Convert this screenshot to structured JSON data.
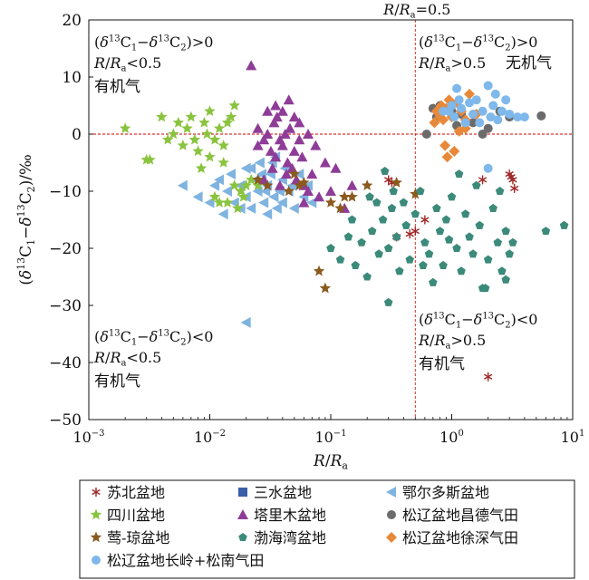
{
  "chart_data": {
    "type": "scatter",
    "title": "",
    "xlabel": "R/Ra",
    "ylabel": "(δ13C1−δ13C2)/‰",
    "xscale": "log",
    "xlim": [
      0.001,
      10
    ],
    "ylim": [
      -50,
      20
    ],
    "x_ticks": [
      0.001,
      0.01,
      0.1,
      1,
      10
    ],
    "x_tick_labels": [
      "10−3",
      "10−2",
      "10−1",
      "100",
      "101"
    ],
    "y_ticks": [
      20,
      10,
      0,
      -10,
      -20,
      -30,
      -40,
      -50
    ],
    "y_tick_labels": [
      "20",
      "10",
      "0",
      "−10",
      "−20",
      "−30",
      "−40",
      "−50"
    ],
    "reference_lines": [
      {
        "orientation": "vertical",
        "x": 0.5,
        "label": "R/Ra=0.5",
        "color": "#c0392b"
      },
      {
        "orientation": "horizontal",
        "y": 0,
        "label": "",
        "color": "#cc0000"
      }
    ],
    "annotations": [
      {
        "line1": "(δ13C1−δ13C2)>0",
        "line2": "R/Ra<0.5",
        "line3": "有机气"
      },
      {
        "line1": "(δ13C1−δ13C2)>0",
        "line2": "R/Ra>0.5",
        "line3": "无机气"
      },
      {
        "line1": "(δ13C1−δ13C2)<0",
        "line2": "R/Ra<0.5",
        "line3": "有机气"
      },
      {
        "line1": "(δ13C1−δ13C2)<0",
        "line2": "R/Ra>0.5",
        "line3": "有机气"
      }
    ],
    "legend_position": "bottom",
    "series": [
      {
        "name": "苏北盆地",
        "marker": "asterisk",
        "color": "#a02828",
        "points": [
          [
            0.3,
            -8
          ],
          [
            0.32,
            -8.5
          ],
          [
            0.35,
            -18
          ],
          [
            0.6,
            -15
          ],
          [
            0.45,
            -17.5
          ],
          [
            1.8,
            -8
          ],
          [
            3.0,
            -7
          ],
          [
            3.2,
            -8
          ],
          [
            3.3,
            -9.5
          ],
          [
            3.1,
            -7.5
          ],
          [
            2.0,
            -42.5
          ],
          [
            0.5,
            -17
          ]
        ]
      },
      {
        "name": "三水盆地",
        "marker": "square",
        "color": "#3b5fa8",
        "points": []
      },
      {
        "name": "鄂尔多斯盆地",
        "marker": "tri-left",
        "color": "#7fb3e0",
        "points": [
          [
            0.006,
            -9
          ],
          [
            0.008,
            -11
          ],
          [
            0.01,
            -12
          ],
          [
            0.012,
            -8
          ],
          [
            0.014,
            -10
          ],
          [
            0.015,
            -7
          ],
          [
            0.016,
            -12
          ],
          [
            0.018,
            -9
          ],
          [
            0.02,
            -6
          ],
          [
            0.02,
            -11
          ],
          [
            0.022,
            -13
          ],
          [
            0.024,
            -8
          ],
          [
            0.025,
            -10
          ],
          [
            0.026,
            -5
          ],
          [
            0.028,
            -12
          ],
          [
            0.03,
            -9
          ],
          [
            0.03,
            -14
          ],
          [
            0.032,
            -7
          ],
          [
            0.034,
            -11
          ],
          [
            0.035,
            -4
          ],
          [
            0.036,
            -13
          ],
          [
            0.038,
            -10
          ],
          [
            0.04,
            -8
          ],
          [
            0.04,
            -12
          ],
          [
            0.042,
            -6
          ],
          [
            0.045,
            -10
          ],
          [
            0.048,
            -9
          ],
          [
            0.05,
            -13
          ],
          [
            0.055,
            -7
          ],
          [
            0.06,
            -11
          ],
          [
            0.065,
            -9
          ],
          [
            0.07,
            -12
          ],
          [
            0.022,
            -6
          ],
          [
            0.018,
            -13
          ],
          [
            0.027,
            -7
          ],
          [
            0.033,
            -5
          ],
          [
            0.02,
            -33
          ],
          [
            0.013,
            -14
          ],
          [
            0.011,
            -9
          ],
          [
            0.029,
            -10
          ]
        ]
      },
      {
        "name": "四川盆地",
        "marker": "star",
        "color": "#8ac43f",
        "points": [
          [
            0.002,
            1
          ],
          [
            0.003,
            -4.5
          ],
          [
            0.0032,
            -4.5
          ],
          [
            0.004,
            3
          ],
          [
            0.0045,
            -1
          ],
          [
            0.005,
            0
          ],
          [
            0.0055,
            2
          ],
          [
            0.006,
            -2
          ],
          [
            0.0065,
            1
          ],
          [
            0.007,
            3
          ],
          [
            0.0075,
            -1
          ],
          [
            0.008,
            -3
          ],
          [
            0.009,
            2
          ],
          [
            0.01,
            4
          ],
          [
            0.011,
            -1
          ],
          [
            0.012,
            1
          ],
          [
            0.013,
            -5
          ],
          [
            0.014,
            2
          ],
          [
            0.015,
            3
          ],
          [
            0.016,
            -9
          ],
          [
            0.018,
            -10
          ],
          [
            0.02,
            -9
          ],
          [
            0.022,
            -8
          ],
          [
            0.025,
            -9
          ],
          [
            0.012,
            -12
          ],
          [
            0.014,
            -12
          ],
          [
            0.011,
            -11
          ],
          [
            0.016,
            5
          ],
          [
            0.013,
            -2
          ],
          [
            0.01,
            -4
          ],
          [
            0.0085,
            -6
          ],
          [
            0.017,
            -13
          ],
          [
            0.0095,
            0
          ],
          [
            0.019,
            -11
          ]
        ]
      },
      {
        "name": "塔里木盆地",
        "marker": "triangle",
        "color": "#8e3c97",
        "points": [
          [
            0.022,
            12
          ],
          [
            0.025,
            -2
          ],
          [
            0.028,
            -1
          ],
          [
            0.03,
            0
          ],
          [
            0.032,
            -3
          ],
          [
            0.034,
            2
          ],
          [
            0.035,
            -4
          ],
          [
            0.036,
            3
          ],
          [
            0.038,
            -1
          ],
          [
            0.04,
            -2
          ],
          [
            0.042,
            0
          ],
          [
            0.044,
            -5
          ],
          [
            0.046,
            1
          ],
          [
            0.048,
            -6
          ],
          [
            0.05,
            -3
          ],
          [
            0.052,
            -8
          ],
          [
            0.055,
            -1
          ],
          [
            0.058,
            -4
          ],
          [
            0.06,
            -9
          ],
          [
            0.065,
            0
          ],
          [
            0.07,
            -7
          ],
          [
            0.075,
            -2
          ],
          [
            0.08,
            -11
          ],
          [
            0.09,
            -5
          ],
          [
            0.1,
            -10
          ],
          [
            0.11,
            -6
          ],
          [
            0.13,
            -13
          ],
          [
            0.15,
            -9
          ],
          [
            0.04,
            4
          ],
          [
            0.045,
            6
          ],
          [
            0.05,
            3
          ],
          [
            0.03,
            4
          ],
          [
            0.035,
            5
          ],
          [
            0.06,
            -12
          ],
          [
            0.055,
            2
          ],
          [
            0.025,
            1
          ],
          [
            0.033,
            -6
          ],
          [
            0.028,
            -8
          ],
          [
            0.065,
            -10
          ],
          [
            0.038,
            -9
          ],
          [
            0.043,
            -7
          ]
        ]
      },
      {
        "name": "松辽盆地昌德气田",
        "marker": "circle",
        "color": "#6b6b6b",
        "points": [
          [
            0.62,
            0
          ],
          [
            0.7,
            4.5
          ],
          [
            0.75,
            3
          ],
          [
            1.0,
            4
          ],
          [
            1.2,
            3.5
          ],
          [
            1.5,
            2
          ],
          [
            2.0,
            1
          ],
          [
            3.0,
            3
          ],
          [
            5.5,
            3.2
          ],
          [
            0.8,
            5
          ],
          [
            1.8,
            0
          ],
          [
            2.5,
            4
          ],
          [
            1.1,
            1.5
          ]
        ]
      },
      {
        "name": "莺-琼盆地",
        "marker": "star",
        "color": "#8a5a1e",
        "points": [
          [
            0.025,
            -8
          ],
          [
            0.03,
            -9
          ],
          [
            0.05,
            -7
          ],
          [
            0.055,
            -9
          ],
          [
            0.06,
            -8.5
          ],
          [
            0.08,
            -24
          ],
          [
            0.09,
            -27
          ],
          [
            0.12,
            -13
          ],
          [
            0.13,
            -11
          ],
          [
            0.15,
            -11
          ],
          [
            0.2,
            -9
          ],
          [
            0.35,
            -8.5
          ],
          [
            0.5,
            -10.5
          ],
          [
            0.1,
            -12
          ],
          [
            0.045,
            -10
          ]
        ]
      },
      {
        "name": "渤海湾盆地",
        "marker": "pentagon",
        "color": "#3b8a7a",
        "points": [
          [
            0.1,
            -20
          ],
          [
            0.12,
            -22
          ],
          [
            0.14,
            -18
          ],
          [
            0.16,
            -23
          ],
          [
            0.18,
            -19
          ],
          [
            0.2,
            -25
          ],
          [
            0.22,
            -17
          ],
          [
            0.25,
            -21
          ],
          [
            0.27,
            -15
          ],
          [
            0.3,
            -20
          ],
          [
            0.32,
            -13
          ],
          [
            0.35,
            -18
          ],
          [
            0.37,
            -24
          ],
          [
            0.4,
            -12
          ],
          [
            0.42,
            -16
          ],
          [
            0.45,
            -22
          ],
          [
            0.5,
            -14
          ],
          [
            0.55,
            -10
          ],
          [
            0.6,
            -19
          ],
          [
            0.65,
            -21
          ],
          [
            0.7,
            -26
          ],
          [
            0.75,
            -13
          ],
          [
            0.8,
            -17
          ],
          [
            0.85,
            -23
          ],
          [
            0.9,
            -15
          ],
          [
            1.0,
            -11
          ],
          [
            1.1,
            -20
          ],
          [
            1.2,
            -24
          ],
          [
            1.3,
            -14
          ],
          [
            1.4,
            -18
          ],
          [
            1.5,
            -21
          ],
          [
            1.6,
            -9
          ],
          [
            1.7,
            -16
          ],
          [
            1.8,
            -27
          ],
          [
            2.0,
            -22
          ],
          [
            2.2,
            -13
          ],
          [
            2.4,
            -19
          ],
          [
            2.6,
            -24
          ],
          [
            2.8,
            -17
          ],
          [
            3.0,
            -21
          ],
          [
            3.2,
            -19
          ],
          [
            6.0,
            -17
          ],
          [
            8.5,
            -16
          ],
          [
            0.3,
            -29.5
          ],
          [
            2.8,
            -25.5
          ],
          [
            1.9,
            -27
          ],
          [
            0.24,
            -12
          ],
          [
            0.28,
            -6.5
          ],
          [
            0.21,
            -11
          ],
          [
            0.15,
            -15
          ],
          [
            1.15,
            -7
          ],
          [
            2.5,
            -10
          ],
          [
            0.95,
            -18.5
          ],
          [
            0.58,
            -23
          ],
          [
            0.33,
            -10
          ]
        ]
      },
      {
        "name": "松辽盆地徐深气田",
        "marker": "diamond",
        "color": "#e8893a",
        "points": [
          [
            0.72,
            2
          ],
          [
            0.75,
            4
          ],
          [
            0.8,
            3
          ],
          [
            0.82,
            5
          ],
          [
            0.85,
            2.5
          ],
          [
            0.88,
            -2
          ],
          [
            0.9,
            4.5
          ],
          [
            0.95,
            6
          ],
          [
            1.0,
            3
          ],
          [
            1.05,
            -3
          ],
          [
            1.1,
            5.5
          ],
          [
            1.2,
            4
          ],
          [
            1.3,
            1
          ],
          [
            1.4,
            7
          ],
          [
            1.6,
            3.5
          ],
          [
            1.3,
            2.5
          ],
          [
            0.92,
            -4
          ],
          [
            1.15,
            0.5
          ]
        ]
      },
      {
        "name": "松辽盆地长岭+松南气田",
        "marker": "circle",
        "color": "#7fb8ea",
        "points": [
          [
            0.95,
            4
          ],
          [
            1.0,
            5
          ],
          [
            1.05,
            3
          ],
          [
            1.1,
            8
          ],
          [
            1.15,
            6
          ],
          [
            1.2,
            4.5
          ],
          [
            1.3,
            2
          ],
          [
            1.4,
            5.5
          ],
          [
            1.5,
            3.5
          ],
          [
            1.6,
            6
          ],
          [
            1.8,
            4
          ],
          [
            2.0,
            8.5
          ],
          [
            2.1,
            3
          ],
          [
            2.2,
            5
          ],
          [
            2.4,
            2.5
          ],
          [
            2.6,
            4
          ],
          [
            2.8,
            6
          ],
          [
            3.0,
            3.5
          ],
          [
            3.5,
            3
          ],
          [
            4.0,
            3
          ],
          [
            2.0,
            -6
          ],
          [
            0.85,
            4
          ],
          [
            1.7,
            2
          ],
          [
            2.3,
            7
          ]
        ]
      }
    ]
  }
}
